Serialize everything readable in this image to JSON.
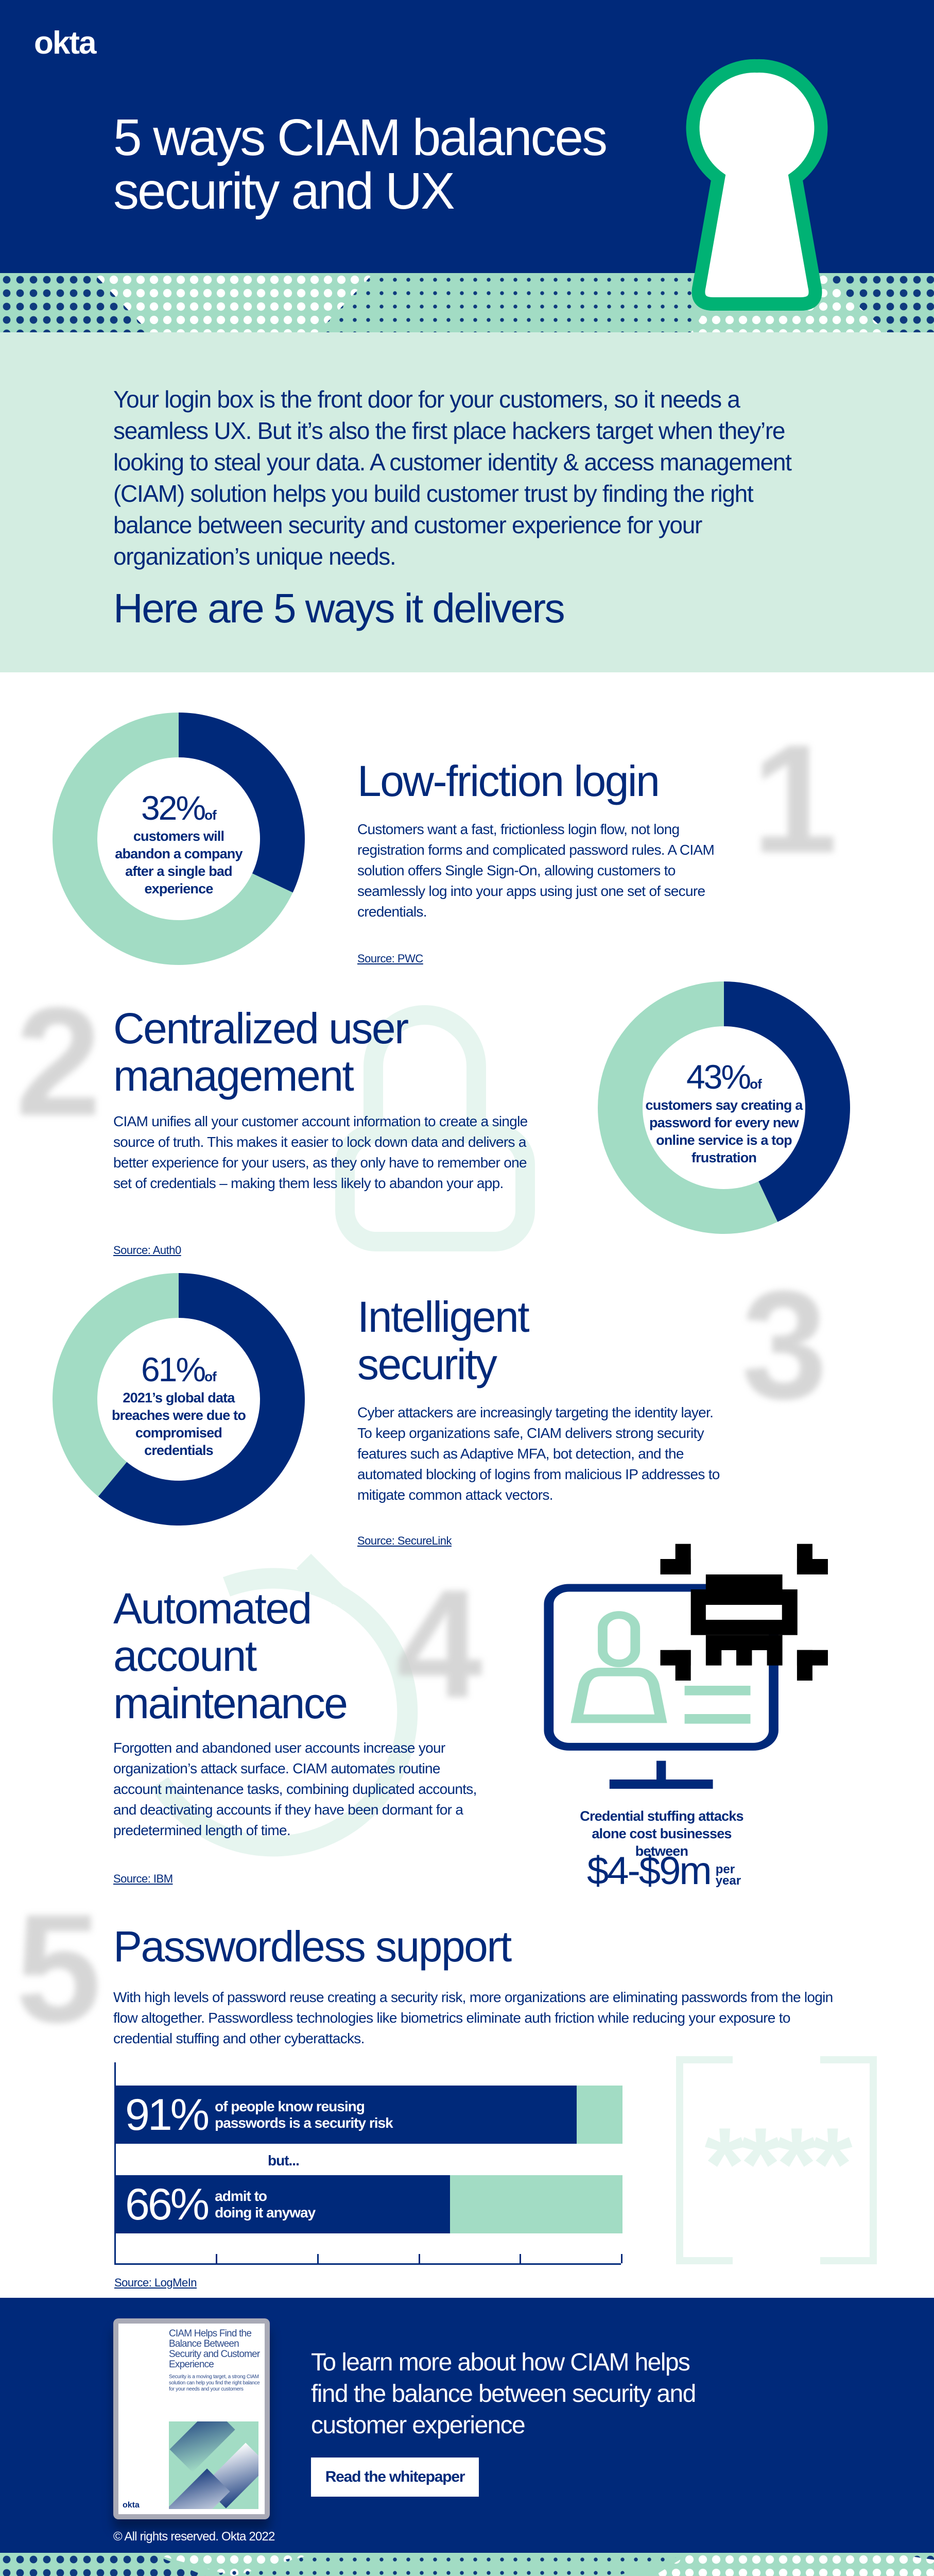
{
  "colors": {
    "navy": "#00297a",
    "mint": "#a2dcc4",
    "mint_light": "#d3ede1",
    "green": "#00b274"
  },
  "header": {
    "logo": "okta",
    "title_line1": "5 ways CIAM balances",
    "title_line2": "security and UX",
    "icon": "keyhole-icon"
  },
  "intro": {
    "paragraph": "Your login box is the front door for your customers, so it needs a seamless UX. But it’s also the first place hackers target when they’re looking to steal your data. A customer identity & access management (CIAM) solution helps you build customer trust by finding the right balance between security and customer experience for your organization’s unique needs.",
    "subhead": "Here are 5 ways it delivers"
  },
  "sections": [
    {
      "number": "1",
      "title": "Low-friction login",
      "body": "Customers want a fast, frictionless login flow, not long registration forms and complicated password rules. A CIAM solution offers Single Sign-On, allowing customers to seamlessly log into your apps using just one set of secure credentials.",
      "source": "Source: PWC",
      "stat": {
        "value": 32,
        "pct": "32%",
        "of": "of",
        "text": "customers will abandon a company after a single bad experience"
      }
    },
    {
      "number": "2",
      "title_line1": "Centralized user",
      "title_line2": "management",
      "body": "CIAM unifies all your customer account information to create a single source of truth. This makes it easier to lock down data and delivers a better experience for your users, as they only have to remember one set of credentials – making them less likely to abandon your app.",
      "source": "Source: Auth0",
      "stat": {
        "value": 43,
        "pct": "43%",
        "of": "of",
        "text": "customers say creating a password for every new online service is a top frustration"
      }
    },
    {
      "number": "3",
      "title_line1": "Intelligent",
      "title_line2": "security",
      "body": "Cyber attackers are increasingly targeting the identity layer. To keep organizations safe, CIAM delivers strong security features such as Adaptive MFA, bot detection, and the automated blocking of logins from malicious IP addresses to mitigate common attack vectors.",
      "source": "Source: SecureLink",
      "stat": {
        "value": 61,
        "pct": "61%",
        "of": "of",
        "text": "2021’s global data breaches were due to compromised credentials"
      }
    },
    {
      "number": "4",
      "title_line1": "Automated",
      "title_line2": "account",
      "title_line3": "maintenance",
      "body": "Forgotten and abandoned user accounts increase your organization’s attack surface. CIAM automates routine account maintenance tasks, combining duplicated accounts, and deactivating accounts if they have been dormant for a predetermined length of time.",
      "source": "Source: IBM",
      "stat": {
        "caption": "Credential stuffing attacks alone cost businesses between",
        "amount": "$4-$9m",
        "unit_line1": "per",
        "unit_line2": "year"
      }
    },
    {
      "number": "5",
      "title": "Passwordless support",
      "body": "With high levels of password reuse creating a security risk, more organizations are eliminating passwords from the login flow altogether. Passwordless technologies like biometrics eliminate auth friction while reducing your exposure to credential stuffing and other cyberattacks.",
      "source": "Source: LogMeIn",
      "bars": [
        {
          "value": 91,
          "pct": "91%",
          "line1": "of people know reusing",
          "line2": "passwords is a security risk"
        },
        {
          "value": 66,
          "pct": "66%",
          "line1": "admit to",
          "line2": "doing it anyway"
        }
      ],
      "between": "but...",
      "decor": "****"
    }
  ],
  "cta": {
    "book_title": "CIAM Helps Find the Balance Between Security and Customer Experience",
    "book_sub": "Security is a moving target, a strong CIAM solution can help you find the right balance for your needs and your customers",
    "book_logo": "okta",
    "text": "To learn more about how CIAM helps find the balance between security and customer experience",
    "button": "Read the whitepaper"
  },
  "footer": {
    "copyright": "© All rights reserved. Okta 2022"
  }
}
